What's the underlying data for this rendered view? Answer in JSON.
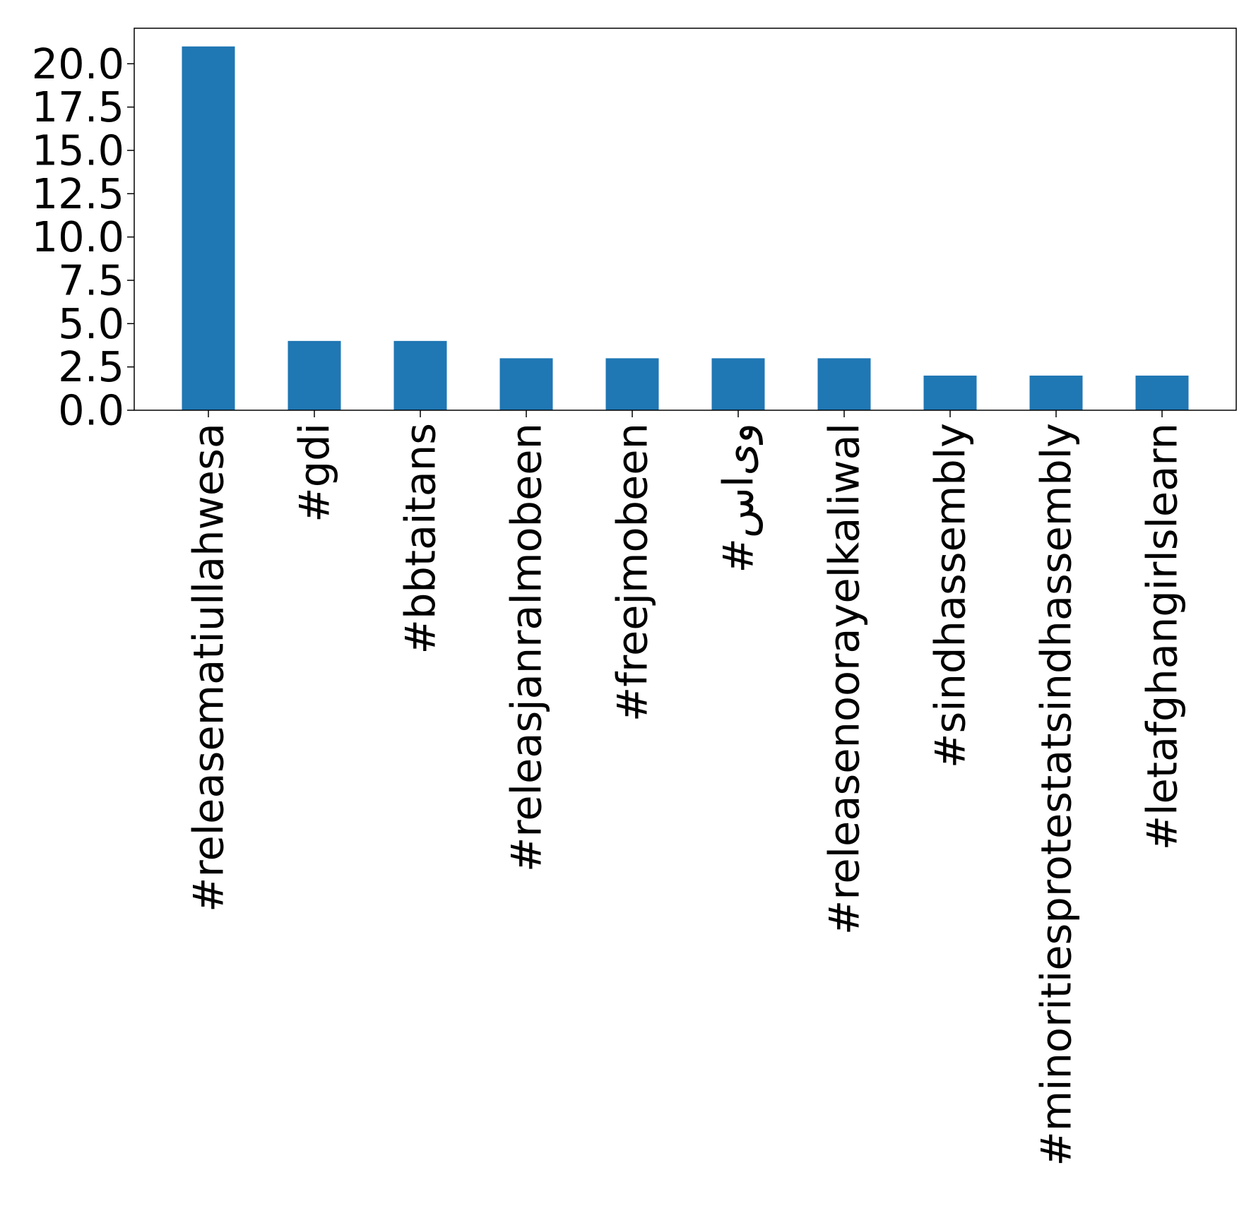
{
  "chart_data": {
    "type": "bar",
    "title": "",
    "xlabel": "",
    "ylabel": "",
    "categories": [
      "#releasematiullahwesa",
      "#gdi",
      "#bbtaitans",
      "#releasjanralmobeen",
      "#freejmobeen",
      "#وی‌اس",
      "#releasenoorayelkaliwal",
      "#sindhassembly",
      "#minoritiesprotestatsindhassembly",
      "#letafghangirlslearn"
    ],
    "values": [
      21,
      4,
      4,
      3,
      3,
      3,
      3,
      2,
      2,
      2
    ],
    "ylim": [
      0,
      22.05
    ],
    "yticks": [
      0.0,
      2.5,
      5.0,
      7.5,
      10.0,
      12.5,
      15.0,
      17.5,
      20.0
    ],
    "ytick_labels": [
      "0.0",
      "2.5",
      "5.0",
      "7.5",
      "10.0",
      "12.5",
      "15.0",
      "17.5",
      "20.0"
    ],
    "grid": false,
    "legend": "none",
    "bar_color": "#1f77b4"
  }
}
